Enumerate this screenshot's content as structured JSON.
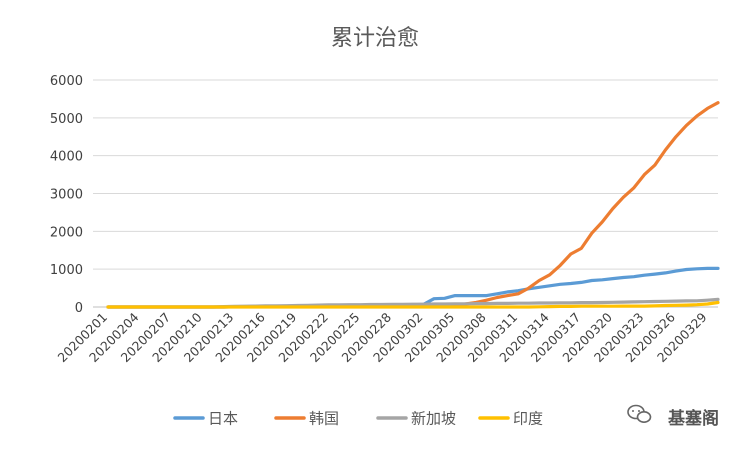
{
  "chart_data": {
    "type": "line",
    "title": "累计治愈",
    "ylim": [
      0,
      6000
    ],
    "y_ticks": [
      "6000",
      "5000",
      "4000",
      "3000",
      "2000",
      "1000",
      "0"
    ],
    "grid": true,
    "legend_position": "bottom",
    "x": [
      "20200201",
      "20200202",
      "20200203",
      "20200204",
      "20200205",
      "20200206",
      "20200207",
      "20200208",
      "20200209",
      "20200210",
      "20200211",
      "20200212",
      "20200213",
      "20200214",
      "20200215",
      "20200216",
      "20200217",
      "20200218",
      "20200219",
      "20200220",
      "20200221",
      "20200222",
      "20200223",
      "20200224",
      "20200225",
      "20200226",
      "20200227",
      "20200228",
      "20200229",
      "20200301",
      "20200302",
      "20200303",
      "20200304",
      "20200305",
      "20200306",
      "20200307",
      "20200308",
      "20200309",
      "20200310",
      "20200311",
      "20200312",
      "20200313",
      "20200314",
      "20200315",
      "20200316",
      "20200317",
      "20200318",
      "20200319",
      "20200320",
      "20200321",
      "20200322",
      "20200323",
      "20200324",
      "20200325",
      "20200326",
      "20200327",
      "20200328",
      "20200329",
      "20200330"
    ],
    "x_tick_labels": [
      "20200201",
      "20200204",
      "20200207",
      "20200210",
      "20200213",
      "20200216",
      "20200219",
      "20200222",
      "20200225",
      "20200228",
      "20200302",
      "20200305",
      "20200308",
      "20200311",
      "20200314",
      "20200317",
      "20200320",
      "20200323",
      "20200326",
      "20200329"
    ],
    "series": [
      {
        "name": "日本",
        "color": "#5B9BD5",
        "values": [
          0,
          0,
          0,
          0,
          0,
          0,
          0,
          0,
          0,
          0,
          0,
          0,
          5,
          10,
          15,
          20,
          20,
          25,
          30,
          35,
          35,
          40,
          40,
          45,
          45,
          50,
          50,
          55,
          55,
          60,
          70,
          220,
          230,
          300,
          300,
          300,
          300,
          350,
          400,
          430,
          480,
          520,
          560,
          600,
          620,
          650,
          700,
          720,
          750,
          780,
          800,
          840,
          870,
          900,
          950,
          990,
          1010,
          1020,
          1020
        ]
      },
      {
        "name": "韩国",
        "color": "#ED7D31",
        "values": [
          0,
          0,
          0,
          0,
          0,
          0,
          0,
          0,
          0,
          0,
          0,
          0,
          5,
          10,
          10,
          15,
          15,
          15,
          15,
          15,
          15,
          20,
          20,
          20,
          25,
          25,
          25,
          25,
          25,
          30,
          30,
          30,
          35,
          40,
          80,
          120,
          180,
          250,
          300,
          350,
          500,
          700,
          850,
          1100,
          1400,
          1550,
          1950,
          2250,
          2600,
          2900,
          3150,
          3500,
          3750,
          4150,
          4500,
          4800,
          5050,
          5250,
          5400
        ]
      },
      {
        "name": "新加坡",
        "color": "#A5A5A5",
        "values": [
          0,
          0,
          0,
          0,
          0,
          0,
          0,
          0,
          0,
          0,
          0,
          10,
          15,
          20,
          25,
          30,
          30,
          35,
          40,
          45,
          50,
          55,
          55,
          60,
          60,
          65,
          65,
          70,
          70,
          75,
          75,
          80,
          80,
          85,
          85,
          90,
          90,
          95,
          95,
          100,
          100,
          105,
          105,
          110,
          110,
          115,
          115,
          120,
          125,
          130,
          135,
          140,
          145,
          150,
          155,
          160,
          165,
          180,
          200
        ]
      },
      {
        "name": "印度",
        "color": "#FFC000",
        "values": [
          0,
          0,
          0,
          0,
          0,
          0,
          0,
          0,
          0,
          0,
          0,
          0,
          0,
          0,
          0,
          0,
          0,
          0,
          0,
          0,
          0,
          0,
          0,
          0,
          0,
          0,
          0,
          0,
          0,
          0,
          0,
          0,
          0,
          0,
          0,
          0,
          0,
          0,
          0,
          0,
          0,
          4,
          10,
          15,
          15,
          20,
          20,
          20,
          20,
          25,
          25,
          25,
          30,
          40,
          45,
          50,
          60,
          80,
          120
        ]
      }
    ]
  },
  "watermark": {
    "text": "基塞阁",
    "icon": "wechat-icon"
  }
}
